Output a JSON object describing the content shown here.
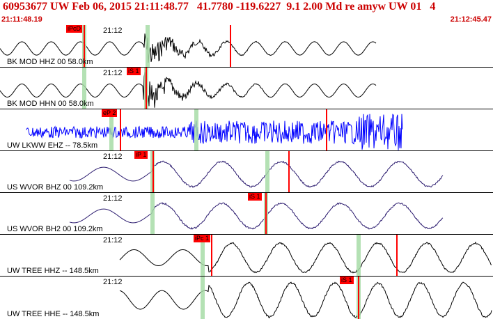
{
  "header": {
    "title": "60953677 UW Feb 06, 2015 21:11:48.77   41.7780 -119.6227  9.1 2.00 Md re amyw UW 01   4",
    "start_time": "21:11:48.19",
    "end_time": "21:12:45.47"
  },
  "colors": {
    "text_red": "#cc0000",
    "pick_red": "#ff0000",
    "window_green": "#a7dca7",
    "trace_black": "#000000",
    "trace_blue": "#0000ff",
    "trace_purple": "#2a1a6e"
  },
  "panels": [
    {
      "label": "BK MOD HHZ 00 58.0km",
      "time": "21:12",
      "pick": "iPcD",
      "color": "black",
      "style": "burst",
      "amp": 0.35
    },
    {
      "label": "BK MOD HHN 00 58.0km",
      "time": "21:12",
      "pick": "iS 1",
      "color": "black",
      "style": "burst",
      "amp": 0.35
    },
    {
      "label": "UW LKWW EHZ -- 78.5km",
      "time": "",
      "pick": "eP 2",
      "color": "blue",
      "style": "noise",
      "amp": 0.4
    },
    {
      "label": "US WVOR BHZ 00 109.2km",
      "time": "21:12",
      "pick": "iP 1",
      "color": "purple",
      "style": "wave",
      "amp": 0.3
    },
    {
      "label": "US WVOR BH2 00 109.2km",
      "time": "21:12",
      "pick": "iS 1",
      "color": "purple",
      "style": "wave",
      "amp": 0.3
    },
    {
      "label": "UW TREE HHZ -- 148.5km",
      "time": "21:12",
      "pick": "iPc 1",
      "color": "black",
      "style": "wave",
      "amp": 0.35
    },
    {
      "label": "UW TREE HHE -- 148.5km",
      "time": "21:12",
      "pick": "iS 1",
      "color": "black",
      "style": "wave",
      "amp": 0.4
    }
  ]
}
